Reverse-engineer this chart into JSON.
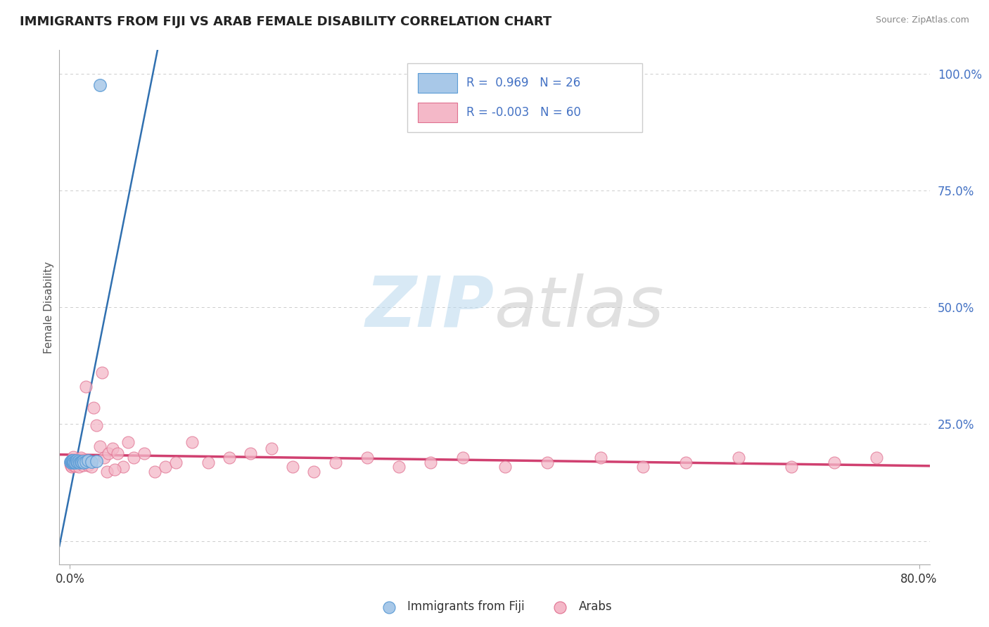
{
  "title": "IMMIGRANTS FROM FIJI VS ARAB FEMALE DISABILITY CORRELATION CHART",
  "source": "Source: ZipAtlas.com",
  "fiji_color": "#a8c8e8",
  "fiji_edge_color": "#5b9bd5",
  "arab_color": "#f4b8c8",
  "arab_edge_color": "#e07090",
  "trend_fiji_color": "#3070b0",
  "trend_arab_color": "#d04070",
  "legend_R_fiji": "0.969",
  "legend_N_fiji": "26",
  "legend_R_arab": "-0.003",
  "legend_N_arab": "60",
  "ylabel_label": "Female Disability",
  "fiji_x": [
    0.0005,
    0.001,
    0.0015,
    0.002,
    0.002,
    0.0025,
    0.003,
    0.003,
    0.004,
    0.004,
    0.005,
    0.005,
    0.006,
    0.006,
    0.007,
    0.008,
    0.009,
    0.01,
    0.011,
    0.012,
    0.013,
    0.015,
    0.017,
    0.02,
    0.025,
    0.028
  ],
  "fiji_y": [
    0.17,
    0.168,
    0.172,
    0.169,
    0.171,
    0.17,
    0.168,
    0.172,
    0.17,
    0.169,
    0.171,
    0.168,
    0.17,
    0.172,
    0.169,
    0.171,
    0.168,
    0.17,
    0.169,
    0.171,
    0.168,
    0.17,
    0.172,
    0.169,
    0.171,
    0.975
  ],
  "arab_x": [
    0.0005,
    0.001,
    0.001,
    0.0015,
    0.002,
    0.002,
    0.003,
    0.003,
    0.004,
    0.005,
    0.005,
    0.006,
    0.007,
    0.008,
    0.009,
    0.01,
    0.012,
    0.013,
    0.015,
    0.017,
    0.02,
    0.022,
    0.025,
    0.028,
    0.032,
    0.036,
    0.04,
    0.045,
    0.05,
    0.055,
    0.06,
    0.07,
    0.08,
    0.09,
    0.1,
    0.115,
    0.13,
    0.15,
    0.17,
    0.19,
    0.21,
    0.23,
    0.25,
    0.28,
    0.31,
    0.34,
    0.37,
    0.41,
    0.45,
    0.5,
    0.54,
    0.58,
    0.63,
    0.68,
    0.72,
    0.76,
    0.015,
    0.03,
    0.035,
    0.042
  ],
  "arab_y": [
    0.165,
    0.17,
    0.16,
    0.172,
    0.168,
    0.158,
    0.18,
    0.162,
    0.172,
    0.16,
    0.168,
    0.172,
    0.168,
    0.158,
    0.172,
    0.178,
    0.162,
    0.168,
    0.172,
    0.162,
    0.158,
    0.285,
    0.248,
    0.202,
    0.178,
    0.188,
    0.198,
    0.188,
    0.158,
    0.212,
    0.178,
    0.188,
    0.148,
    0.158,
    0.168,
    0.212,
    0.168,
    0.178,
    0.188,
    0.198,
    0.158,
    0.148,
    0.168,
    0.178,
    0.158,
    0.168,
    0.178,
    0.158,
    0.168,
    0.178,
    0.158,
    0.168,
    0.178,
    0.158,
    0.168,
    0.178,
    0.33,
    0.36,
    0.148,
    0.152
  ],
  "xmin": 0.0,
  "xmax": 0.8,
  "ymin": -0.05,
  "ymax": 1.05,
  "yticks": [
    0.0,
    0.25,
    0.5,
    0.75,
    1.0
  ],
  "ytick_labels": [
    "",
    "25.0%",
    "50.0%",
    "75.0%",
    "100.0%"
  ]
}
